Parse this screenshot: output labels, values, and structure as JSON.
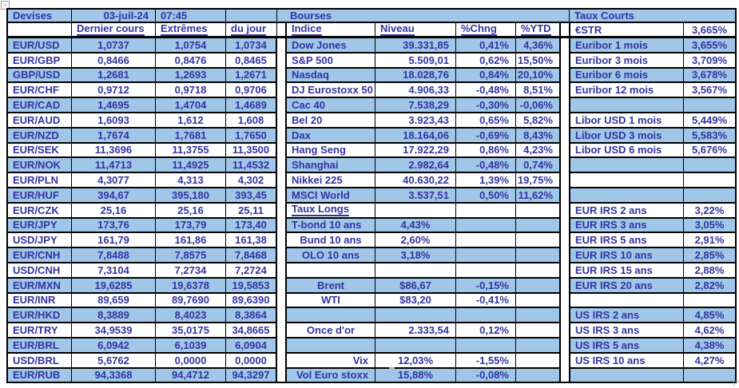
{
  "colors": {
    "row_shade": "#A0C6E8",
    "ink": "#3333A0",
    "border": "#000000"
  },
  "artifacts": {
    "table_handle_glyph": "+"
  },
  "devises": {
    "title": "Devises",
    "date": "03-juil-24",
    "time": "07:45",
    "columns": [
      "Dernier cours",
      "Extrêmes",
      "du jour"
    ],
    "rows": [
      {
        "pair": "EUR/USD",
        "dernier_cours": "1,0737",
        "extremes": "1,0754",
        "du_jour": "1,0734"
      },
      {
        "pair": "EUR/GBP",
        "dernier_cours": "0,8466",
        "extremes": "0,8476",
        "du_jour": "0,8465"
      },
      {
        "pair": "GBP/USD",
        "dernier_cours": "1,2681",
        "extremes": "1,2693",
        "du_jour": "1,2671"
      },
      {
        "pair": "EUR/CHF",
        "dernier_cours": "0,9712",
        "extremes": "0,9718",
        "du_jour": "0,9706"
      },
      {
        "pair": "EUR/CAD",
        "dernier_cours": "1,4695",
        "extremes": "1,4704",
        "du_jour": "1,4689"
      },
      {
        "pair": "EUR/AUD",
        "dernier_cours": "1,6093",
        "extremes": "1,612",
        "du_jour": "1,608"
      },
      {
        "pair": "EUR/NZD",
        "dernier_cours": "1,7674",
        "extremes": "1,7681",
        "du_jour": "1,7650"
      },
      {
        "pair": "EUR/SEK",
        "dernier_cours": "11,3696",
        "extremes": "11,3755",
        "du_jour": "11,3500"
      },
      {
        "pair": "EUR/NOK",
        "dernier_cours": "11,4713",
        "extremes": "11,4925",
        "du_jour": "11,4532"
      },
      {
        "pair": "EUR/PLN",
        "dernier_cours": "4,3077",
        "extremes": "4,313",
        "du_jour": "4,302"
      },
      {
        "pair": "EUR/HUF",
        "dernier_cours": "394,67",
        "extremes": "395,180",
        "du_jour": "393,45"
      },
      {
        "pair": "EUR/CZK",
        "dernier_cours": "25,16",
        "extremes": "25,16",
        "du_jour": "25,11"
      },
      {
        "pair": "EUR/JPY",
        "dernier_cours": "173,76",
        "extremes": "173,79",
        "du_jour": "173,40"
      },
      {
        "pair": "USD/JPY",
        "dernier_cours": "161,79",
        "extremes": "161,86",
        "du_jour": "161,38"
      },
      {
        "pair": "EUR/CNH",
        "dernier_cours": "7,8488",
        "extremes": "7,8575",
        "du_jour": "7,8468"
      },
      {
        "pair": "USD/CNH",
        "dernier_cours": "7,3104",
        "extremes": "7,2734",
        "du_jour": "7,2724"
      },
      {
        "pair": "EUR/MXN",
        "dernier_cours": "19,6285",
        "extremes": "19,6378",
        "du_jour": "19,5853"
      },
      {
        "pair": "EUR/INR",
        "dernier_cours": "89,659",
        "extremes": "89,7690",
        "du_jour": "89,6390"
      },
      {
        "pair": "EUR/HKD",
        "dernier_cours": "8,3889",
        "extremes": "8,4023",
        "du_jour": "8,3864"
      },
      {
        "pair": "EUR/TRY",
        "dernier_cours": "34,9539",
        "extremes": "35,0175",
        "du_jour": "34,8665"
      },
      {
        "pair": "EUR/BRL",
        "dernier_cours": "6,0942",
        "extremes": "6,1039",
        "du_jour": "6,0904"
      },
      {
        "pair": "USD/BRL",
        "dernier_cours": "5,6762",
        "extremes": "0,0000",
        "du_jour": "0,0000"
      },
      {
        "pair": "EUR/RUB",
        "dernier_cours": "94,3368",
        "extremes": "94,4712",
        "du_jour": "94,3297"
      }
    ]
  },
  "bourses": {
    "title": "Bourses",
    "columns": [
      "Indice",
      "Niveau",
      "%Chng",
      "%YTD"
    ],
    "rows": [
      {
        "label": "Dow Jones",
        "niveau": "39.331,85",
        "chng": "0,41%",
        "ytd": "4,36%",
        "style": "index"
      },
      {
        "label": "S&P 500",
        "niveau": "5.509,01",
        "chng": "0,62%",
        "ytd": "15,50%",
        "style": "index"
      },
      {
        "label": "Nasdaq",
        "niveau": "18.028,76",
        "chng": "0,84%",
        "ytd": "20,10%",
        "style": "index"
      },
      {
        "label": "DJ Eurostoxx 50",
        "niveau": "4.906,33",
        "chng": "-0,48%",
        "ytd": "8,51%",
        "style": "index"
      },
      {
        "label": "Cac 40",
        "niveau": "7.538,29",
        "chng": "-0,30%",
        "ytd": "-0,06%",
        "style": "index"
      },
      {
        "label": "Bel 20",
        "niveau": "3.923,43",
        "chng": "0,65%",
        "ytd": "5,82%",
        "style": "index"
      },
      {
        "label": "Dax",
        "niveau": "18.164,06",
        "chng": "-0,69%",
        "ytd": "8,43%",
        "style": "index"
      },
      {
        "label": "Hang Seng",
        "niveau": "17.922,29",
        "chng": "0,86%",
        "ytd": "4,23%",
        "style": "index"
      },
      {
        "label": "Shanghai",
        "niveau": "2.982,64",
        "chng": "-0,48%",
        "ytd": "0,74%",
        "style": "index"
      },
      {
        "label": "Nikkei 225",
        "niveau": "40.630,22",
        "chng": "1,39%",
        "ytd": "19,75%",
        "style": "index"
      },
      {
        "label": "MSCI World",
        "niveau": "3.537,51",
        "chng": "0,50%",
        "ytd": "11,62%",
        "style": "index"
      },
      {
        "label": "Taux Longs",
        "style": "section-header"
      },
      {
        "label": "T-bond 10 ans",
        "niveau": "4,43%",
        "style": "rate-left"
      },
      {
        "label": "Bund 10 ans",
        "niveau": "2,60%",
        "style": "rate-center"
      },
      {
        "label": "OLO 10 ans",
        "niveau": "3,18%",
        "style": "rate-center"
      },
      {
        "style": "empty"
      },
      {
        "label": "Brent",
        "niveau": "$86,67",
        "chng": "-0,15%",
        "style": "commodity"
      },
      {
        "label": "WTI",
        "niveau": "$83,20",
        "chng": "-0,41%",
        "style": "commodity"
      },
      {
        "style": "empty"
      },
      {
        "label": "Once d'or",
        "niveau": "2.333,54",
        "chng": "0,12%",
        "style": "gold"
      },
      {
        "style": "empty"
      },
      {
        "label": "Vix",
        "niveau": "12,03%",
        "chng": "-1,55%",
        "style": "vol"
      },
      {
        "label": "Vol Euro stoxx",
        "niveau": "15,88%",
        "chng": "-0,08%",
        "style": "vol"
      }
    ]
  },
  "taux_courts": {
    "title": "Taux Courts",
    "header_row": {
      "label": "€STR",
      "value": "3,665%"
    },
    "rows": [
      {
        "label": "Euribor 1 mois",
        "value": "3,655%"
      },
      {
        "label": "Euribor 3 mois",
        "value": "3,709%"
      },
      {
        "label": "Euribor 6 mois",
        "value": "3,678%"
      },
      {
        "label": "Euribor 12 mois",
        "value": "3,567%"
      },
      {
        "label": "",
        "value": ""
      },
      {
        "label": "Libor USD 1 mois",
        "value": "5,449%"
      },
      {
        "label": "Libor USD 3 mois",
        "value": "5,583%"
      },
      {
        "label": "Libor USD 6 mois",
        "value": "5,676%"
      },
      {
        "label": "",
        "value": ""
      },
      {
        "label": "",
        "value": ""
      },
      {
        "label": "",
        "value": ""
      },
      {
        "label": "EUR IRS 2 ans",
        "value": "3,22%"
      },
      {
        "label": "EUR IRS 3 ans",
        "value": "3,05%"
      },
      {
        "label": "EUR IRS 5 ans",
        "value": "2,91%"
      },
      {
        "label": "EUR IRS 10 ans",
        "value": "2,85%"
      },
      {
        "label": "EUR IRS 15 ans",
        "value": "2,88%"
      },
      {
        "label": "EUR IRS 20 ans",
        "value": "2,82%"
      },
      {
        "label": "",
        "value": ""
      },
      {
        "label": "US IRS 2 ans",
        "value": "4,85%"
      },
      {
        "label": "US IRS 3 ans",
        "value": "4,62%"
      },
      {
        "label": "US IRS 5 ans",
        "value": "4,38%"
      },
      {
        "label": "US IRS 10 ans",
        "value": "4,27%"
      },
      {
        "label": "",
        "value": ""
      }
    ]
  }
}
